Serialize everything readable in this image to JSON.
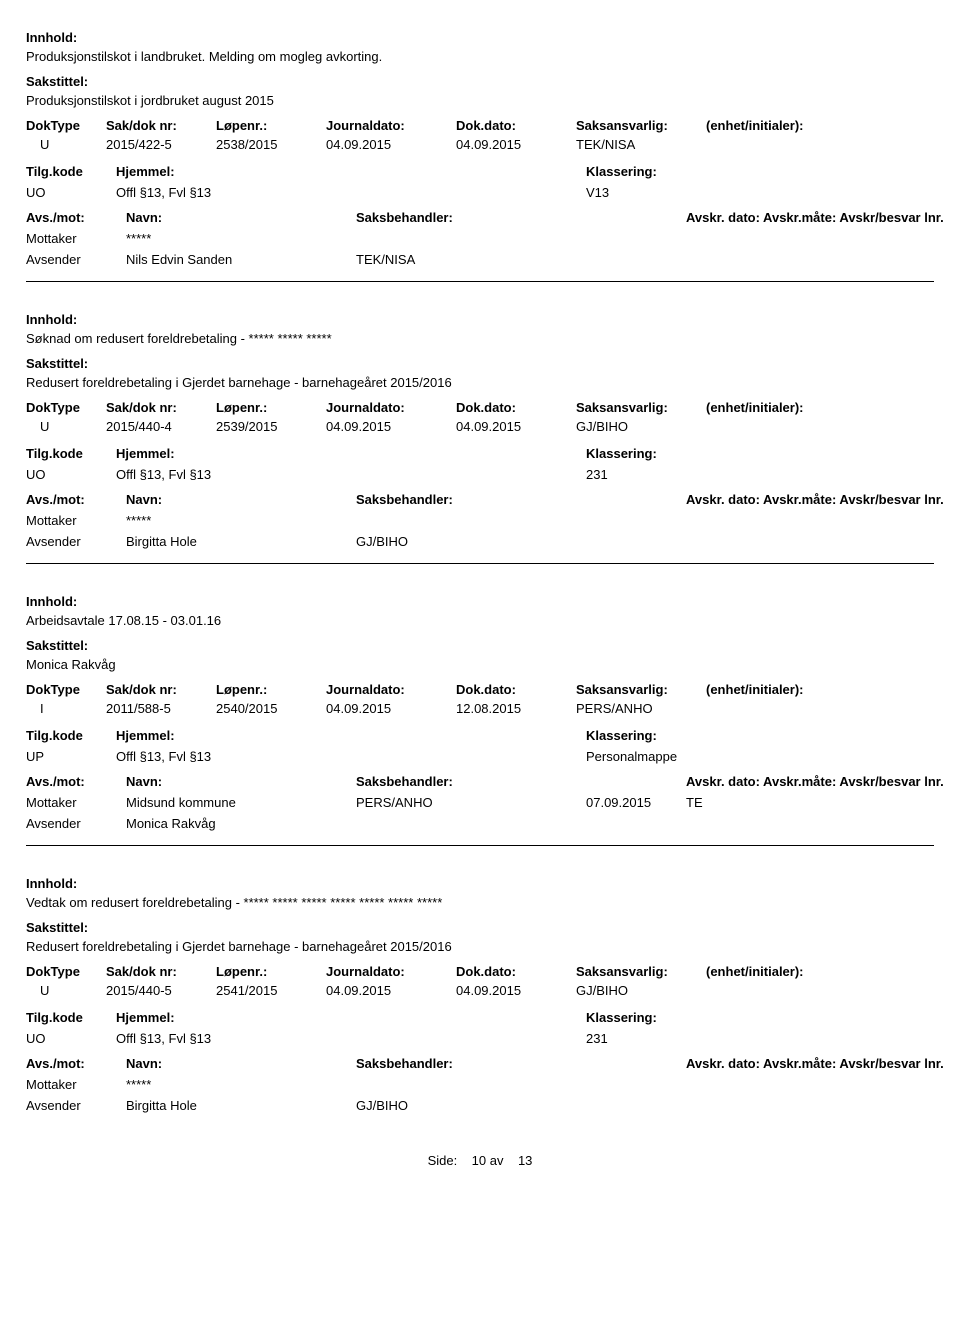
{
  "labels": {
    "innhold": "Innhold:",
    "sakstittel": "Sakstittel:",
    "doktype": "DokType",
    "sakdoknr": "Sak/dok nr:",
    "lopenr": "Løpenr.:",
    "journaldato": "Journaldato:",
    "dokdato": "Dok.dato:",
    "saksansvarlig": "Saksansvarlig:",
    "enhet": "(enhet/initialer):",
    "tilgkode": "Tilg.kode",
    "hjemmel": "Hjemmel:",
    "klassering": "Klassering:",
    "avsmot": "Avs./mot:",
    "navn": "Navn:",
    "saksbehandler": "Saksbehandler:",
    "avskrdato": "Avskr. dato:",
    "avskrmatebesvar": "Avskr.måte: Avskr/besvar lnr.",
    "mottaker": "Mottaker",
    "avsender": "Avsender"
  },
  "records": [
    {
      "innhold": "Produksjonstilskot i landbruket. Melding om mogleg avkorting.",
      "sakstittel": "Produksjonstilskot i jordbruket august 2015",
      "doktype": "U",
      "sakdoknr": "2015/422-5",
      "lopenr": "2538/2015",
      "journaldato": "04.09.2015",
      "dokdato": "04.09.2015",
      "saksansvarlig": "TEK/NISA",
      "enhet": "",
      "tilgkode": "UO",
      "hjemmel": "Offl §13, Fvl §13",
      "klassering": "V13",
      "avskrdato": "",
      "avskrmate": "",
      "mottaker_navn": "*****",
      "mottaker_saksb": "",
      "avsender_navn": "Nils Edvin Sanden",
      "avsender_saksb": "TEK/NISA"
    },
    {
      "innhold": "Søknad om redusert foreldrebetaling - ***** *****  *****",
      "sakstittel": "Redusert foreldrebetaling i Gjerdet barnehage - barnehageåret 2015/2016",
      "doktype": "U",
      "sakdoknr": "2015/440-4",
      "lopenr": "2539/2015",
      "journaldato": "04.09.2015",
      "dokdato": "04.09.2015",
      "saksansvarlig": "GJ/BIHO",
      "enhet": "",
      "tilgkode": "UO",
      "hjemmel": "Offl §13, Fvl §13",
      "klassering": "231",
      "avskrdato": "",
      "avskrmate": "",
      "mottaker_navn": "*****",
      "mottaker_saksb": "",
      "avsender_navn": "Birgitta Hole",
      "avsender_saksb": "GJ/BIHO"
    },
    {
      "innhold": "Arbeidsavtale 17.08.15 - 03.01.16",
      "sakstittel": "Monica Rakvåg",
      "doktype": "I",
      "sakdoknr": "2011/588-5",
      "lopenr": "2540/2015",
      "journaldato": "04.09.2015",
      "dokdato": "12.08.2015",
      "saksansvarlig": "PERS/ANHO",
      "enhet": "",
      "tilgkode": "UP",
      "hjemmel": "Offl §13, Fvl §13",
      "klassering": "Personalmappe",
      "avskrdato": "07.09.2015",
      "avskrmate": "TE",
      "mottaker_navn": "Midsund kommune",
      "mottaker_saksb": "PERS/ANHO",
      "avsender_navn": "Monica Rakvåg",
      "avsender_saksb": ""
    },
    {
      "innhold": "Vedtak om redusert foreldrebetaling - ***** ***** ***** ***** ***** ***** *****",
      "sakstittel": "Redusert foreldrebetaling i Gjerdet barnehage - barnehageåret 2015/2016",
      "doktype": "U",
      "sakdoknr": "2015/440-5",
      "lopenr": "2541/2015",
      "journaldato": "04.09.2015",
      "dokdato": "04.09.2015",
      "saksansvarlig": "GJ/BIHO",
      "enhet": "",
      "tilgkode": "UO",
      "hjemmel": "Offl §13, Fvl §13",
      "klassering": "231",
      "avskrdato": "",
      "avskrmate": "",
      "mottaker_navn": "*****",
      "mottaker_saksb": "",
      "avsender_navn": "Birgitta Hole",
      "avsender_saksb": "GJ/BIHO"
    }
  ],
  "footer": {
    "side_label": "Side:",
    "page_current": "10",
    "page_sep": "av",
    "page_total": "13"
  }
}
